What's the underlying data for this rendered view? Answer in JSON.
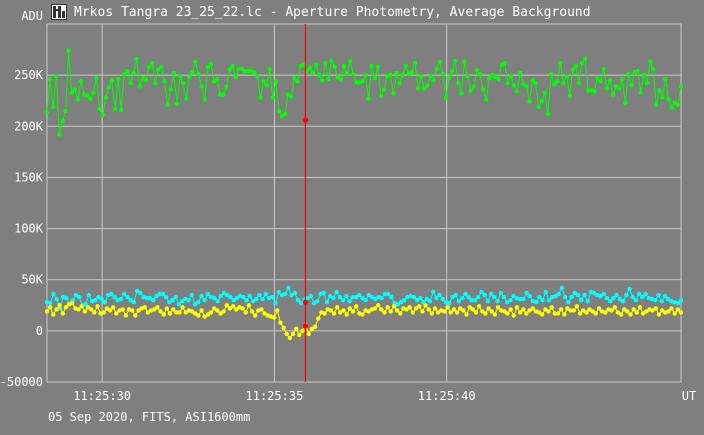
{
  "window": {
    "title": "Mrkos Tangra 23_25_22.lc - Aperture Photometry, Average Background",
    "footer": "05 Sep 2020, FITS, ASI1600mm"
  },
  "colors": {
    "background": "#7f7f7f",
    "grid": "#c8c8c8",
    "series_green": "#00ff00",
    "series_cyan": "#00ffff",
    "series_yellow": "#ffff00",
    "cursor": "#ff0000"
  },
  "chart_data": {
    "type": "line",
    "ylabel": "ADU",
    "xlabel": "UT",
    "ylim": [
      -50000,
      300000
    ],
    "y_ticks": [
      {
        "value": 250000,
        "label": "250K"
      },
      {
        "value": 200000,
        "label": "200K"
      },
      {
        "value": 150000,
        "label": "150K"
      },
      {
        "value": 100000,
        "label": "100K"
      },
      {
        "value": 50000,
        "label": "50K"
      },
      {
        "value": 0,
        "label": "0"
      },
      {
        "value": -50000,
        "label": "-50000"
      }
    ],
    "x_range_seconds": [
      28.4,
      46.8
    ],
    "x_ticks": [
      {
        "value": 30,
        "label": "11:25:30"
      },
      {
        "value": 35,
        "label": "11:25:35"
      },
      {
        "value": 40,
        "label": "11:25:40"
      }
    ],
    "cursor_x": 35.9,
    "cursor_markers": [
      206000,
      28000,
      5000
    ],
    "grid": true,
    "series": [
      {
        "color": "green",
        "values": [
          214000,
          246000,
          219000,
          249000,
          192000,
          205000,
          215000,
          274000,
          233000,
          236000,
          226000,
          244000,
          231000,
          230000,
          227000,
          233000,
          247000,
          217000,
          211000,
          228000,
          238000,
          245000,
          217000,
          246000,
          216000,
          251000,
          254000,
          242000,
          252000,
          266000,
          239000,
          247000,
          245000,
          258000,
          262000,
          242000,
          255000,
          258000,
          244000,
          221000,
          236000,
          252000,
          222000,
          249000,
          242000,
          227000,
          248000,
          253000,
          263000,
          251000,
          239000,
          226000,
          258000,
          261000,
          244000,
          246000,
          231000,
          231000,
          239000,
          255000,
          259000,
          248000,
          256000,
          256000,
          254000,
          254000,
          254000,
          253000,
          249000,
          228000,
          244000,
          240000,
          256000,
          228000,
          244000,
          215000,
          210000,
          212000,
          231000,
          229000,
          247000,
          244000,
          259000,
          260000,
          254000,
          257000,
          252000,
          260000,
          250000,
          245000,
          262000,
          246000,
          264000,
          258000,
          248000,
          246000,
          259000,
          251000,
          264000,
          251000,
          243000,
          243000,
          244000,
          250000,
          227000,
          259000,
          247000,
          258000,
          230000,
          236000,
          249000,
          250000,
          232000,
          252000,
          242000,
          250000,
          259000,
          251000,
          253000,
          262000,
          237000,
          249000,
          237000,
          240000,
          249000,
          245000,
          256000,
          263000,
          251000,
          228000,
          247000,
          254000,
          264000,
          242000,
          232000,
          263000,
          249000,
          235000,
          239000,
          255000,
          251000,
          236000,
          226000,
          247000,
          250000,
          248000,
          246000,
          260000,
          262000,
          242000,
          249000,
          240000,
          234000,
          252000,
          241000,
          239000,
          224000,
          245000,
          242000,
          219000,
          225000,
          233000,
          212000,
          251000,
          241000,
          244000,
          262000,
          242000,
          249000,
          230000,
          255000,
          259000,
          242000,
          262000,
          266000,
          235000,
          235000,
          234000,
          247000,
          244000,
          256000,
          237000,
          245000,
          231000,
          239000,
          237000,
          246000,
          223000,
          251000,
          240000,
          253000,
          254000,
          233000,
          250000,
          242000,
          263000,
          256000,
          221000,
          235000,
          228000,
          246000,
          226000,
          218000,
          223000,
          221000,
          239000
        ]
      },
      {
        "color": "cyan",
        "values": [
          28000,
          27000,
          36000,
          31000,
          22000,
          33000,
          32000,
          26000,
          30000,
          35000,
          33000,
          25000,
          26000,
          35000,
          29000,
          30000,
          33000,
          31000,
          28000,
          35000,
          36000,
          33000,
          30000,
          31000,
          36000,
          33000,
          30000,
          28000,
          39000,
          37000,
          33000,
          32000,
          32000,
          30000,
          34000,
          36000,
          36000,
          33000,
          28000,
          30000,
          33000,
          26000,
          29000,
          31000,
          30000,
          35000,
          26000,
          28000,
          34000,
          30000,
          36000,
          33000,
          32000,
          29000,
          34000,
          37000,
          35000,
          33000,
          30000,
          32000,
          34000,
          33000,
          30000,
          34000,
          29000,
          31000,
          35000,
          31000,
          36000,
          32000,
          33000,
          27000,
          38000,
          35000,
          36000,
          42000,
          35000,
          37000,
          30000,
          27000,
          31000,
          32000,
          34000,
          27000,
          29000,
          36000,
          37000,
          28000,
          34000,
          32000,
          38000,
          33000,
          30000,
          34000,
          29000,
          33000,
          33000,
          35000,
          32000,
          30000,
          35000,
          33000,
          31000,
          33000,
          32000,
          36000,
          36000,
          33000,
          27000,
          26000,
          28000,
          30000,
          33000,
          34000,
          33000,
          30000,
          32000,
          28000,
          31000,
          29000,
          38000,
          32000,
          35000,
          31000,
          28000,
          27000,
          33000,
          35000,
          29000,
          32000,
          36000,
          33000,
          30000,
          30000,
          33000,
          38000,
          35000,
          29000,
          36000,
          33000,
          29000,
          37000,
          33000,
          28000,
          30000,
          34000,
          32000,
          31000,
          31000,
          37000,
          34000,
          29000,
          28000,
          33000,
          30000,
          38000,
          30000,
          33000,
          34000,
          36000,
          42000,
          33000,
          28000,
          33000,
          37000,
          35000,
          30000,
          35000,
          29000,
          38000,
          37000,
          35000,
          34000,
          36000,
          32000,
          29000,
          32000,
          35000,
          31000,
          29000,
          35000,
          41000,
          33000,
          30000,
          36000,
          33000,
          36000,
          32000,
          31000,
          30000,
          35000,
          29000,
          34000,
          31000,
          29000,
          28000,
          27000,
          30000
        ]
      },
      {
        "color": "yellow",
        "values": [
          19000,
          23000,
          16000,
          21000,
          25000,
          17000,
          23000,
          26000,
          27000,
          22000,
          21000,
          24000,
          19000,
          23000,
          21000,
          18000,
          24000,
          17000,
          18000,
          22000,
          20000,
          23000,
          17000,
          20000,
          21000,
          15000,
          21000,
          20000,
          15000,
          20000,
          22000,
          23000,
          18000,
          20000,
          21000,
          23000,
          19000,
          16000,
          22000,
          17000,
          21000,
          18000,
          18000,
          23000,
          18000,
          20000,
          19000,
          17000,
          15000,
          20000,
          14000,
          16000,
          18000,
          22000,
          20000,
          17000,
          19000,
          25000,
          22000,
          24000,
          21000,
          23000,
          22000,
          18000,
          25000,
          19000,
          15000,
          20000,
          21000,
          17000,
          15000,
          14000,
          13000,
          20000,
          8000,
          3000,
          -3000,
          -7000,
          -3000,
          2000,
          -4000,
          0,
          6000,
          -3000,
          2000,
          4000,
          12000,
          18000,
          17000,
          21000,
          20000,
          17000,
          23000,
          18000,
          20000,
          16000,
          22000,
          19000,
          24000,
          17000,
          16000,
          20000,
          19000,
          21000,
          22000,
          25000,
          21000,
          18000,
          23000,
          19000,
          24000,
          20000,
          17000,
          22000,
          21000,
          23000,
          18000,
          22000,
          24000,
          19000,
          25000,
          21000,
          17000,
          22000,
          18000,
          20000,
          19000,
          23000,
          18000,
          21000,
          18000,
          22000,
          20000,
          16000,
          23000,
          21000,
          18000,
          24000,
          19000,
          17000,
          22000,
          19000,
          16000,
          23000,
          20000,
          19000,
          17000,
          21000,
          15000,
          23000,
          18000,
          21000,
          17000,
          20000,
          22000,
          19000,
          18000,
          16000,
          21000,
          19000,
          23000,
          17000,
          17000,
          21000,
          16000,
          22000,
          20000,
          20000,
          24000,
          17000,
          20000,
          18000,
          21000,
          19000,
          17000,
          22000,
          19000,
          18000,
          21000,
          20000,
          23000,
          18000,
          16000,
          21000,
          19000,
          16000,
          21000,
          18000,
          23000,
          17000,
          19000,
          21000,
          20000,
          22000,
          16000,
          20000,
          18000,
          19000,
          22000,
          17000,
          21000,
          18000
        ]
      }
    ]
  }
}
